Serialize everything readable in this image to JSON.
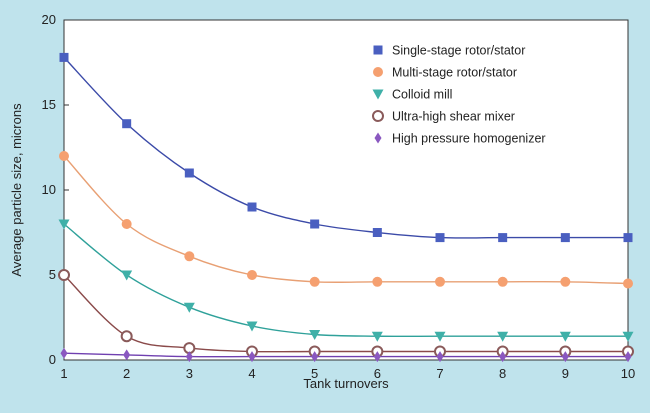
{
  "chart_data": {
    "type": "line",
    "xlabel": "Tank turnovers",
    "ylabel": "Average particle size, microns",
    "x": [
      1,
      2,
      3,
      4,
      5,
      6,
      7,
      8,
      9,
      10
    ],
    "xlim": [
      1,
      10
    ],
    "ylim": [
      0,
      20
    ],
    "xticks": [
      1,
      2,
      3,
      4,
      5,
      6,
      7,
      8,
      9,
      10
    ],
    "yticks": [
      0,
      5,
      10,
      15,
      20
    ],
    "grid": false,
    "legend_position": "top-right",
    "series": [
      {
        "name": "Single-stage rotor/stator",
        "marker": "square",
        "color": "#4a5fc0",
        "line_color": "#3b4aa8",
        "values": [
          17.8,
          13.9,
          11.0,
          9.0,
          8.0,
          7.5,
          7.2,
          7.2,
          7.2,
          7.2
        ]
      },
      {
        "name": "Multi-stage rotor/stator",
        "marker": "circle",
        "color": "#f5a070",
        "line_color": "#e8a074",
        "values": [
          12.0,
          8.0,
          6.1,
          5.0,
          4.6,
          4.6,
          4.6,
          4.6,
          4.6,
          4.5
        ]
      },
      {
        "name": "Colloid mill",
        "marker": "triangle-down",
        "color": "#3fb0a8",
        "line_color": "#2fa19a",
        "values": [
          8.0,
          5.0,
          3.1,
          2.0,
          1.5,
          1.4,
          1.4,
          1.4,
          1.4,
          1.4
        ]
      },
      {
        "name": "Ultra-high shear mixer",
        "marker": "open-circle",
        "color": "#8a5a5a",
        "line_color": "#8a4a4a",
        "values": [
          5.0,
          1.4,
          0.7,
          0.5,
          0.5,
          0.5,
          0.5,
          0.5,
          0.5,
          0.5
        ]
      },
      {
        "name": "High pressure homogenizer",
        "marker": "diamond",
        "color": "#8a58c0",
        "line_color": "#7040b0",
        "values": [
          0.4,
          0.3,
          0.2,
          0.2,
          0.2,
          0.2,
          0.2,
          0.2,
          0.2,
          0.2
        ]
      }
    ]
  }
}
